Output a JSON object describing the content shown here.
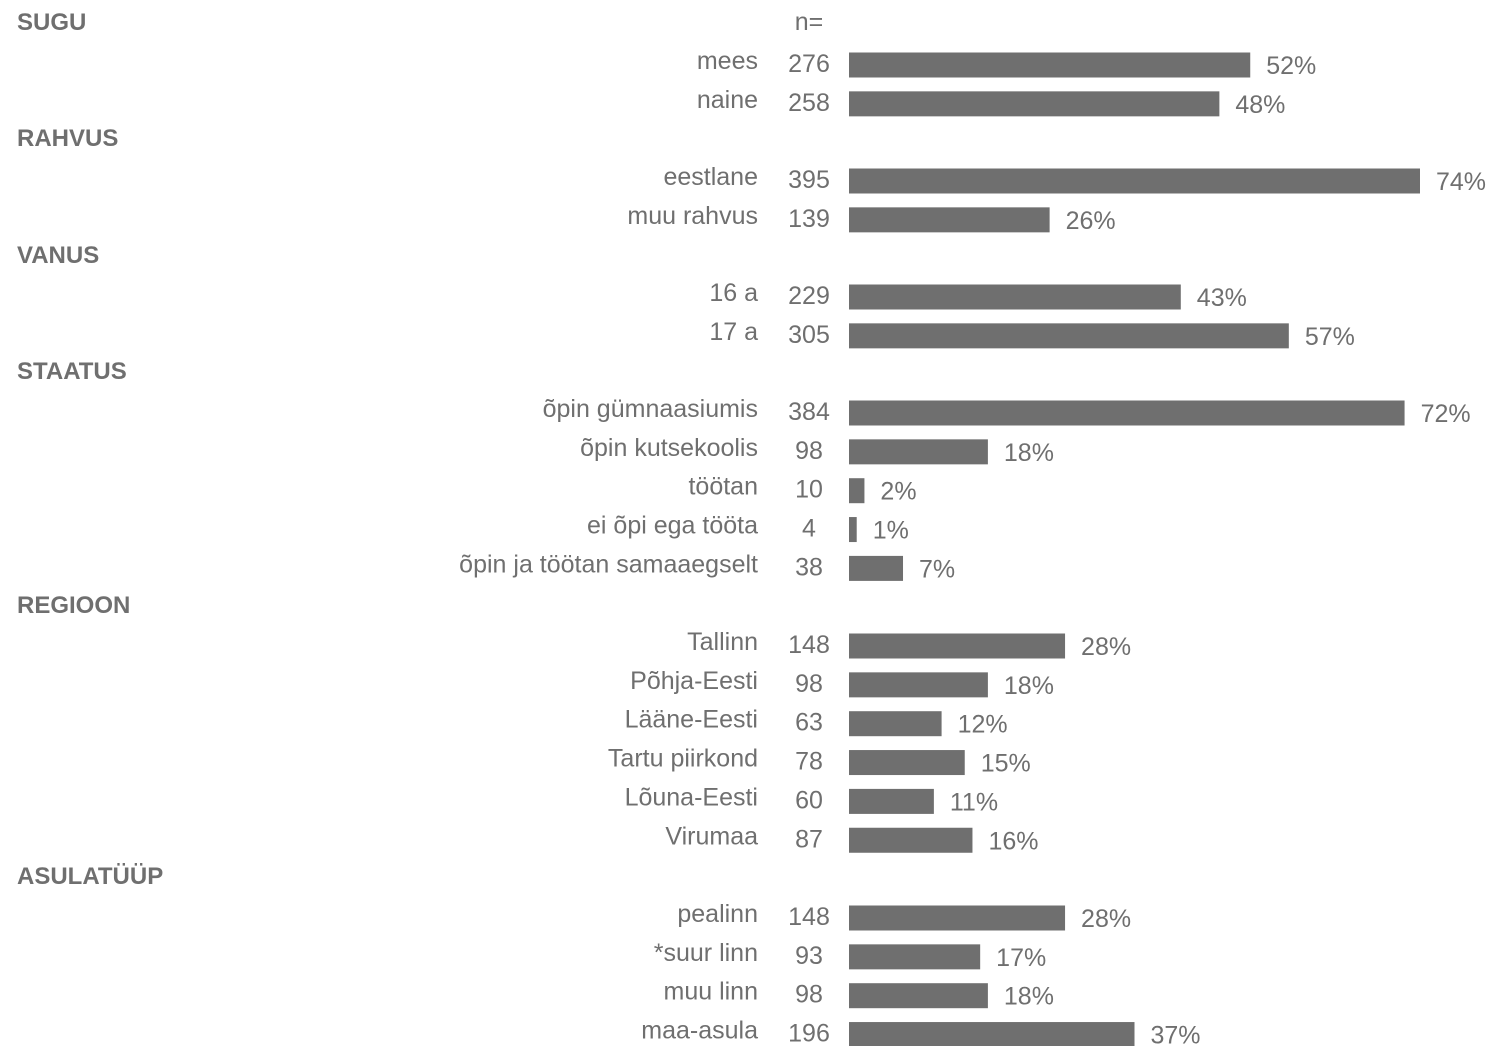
{
  "chart_data": {
    "type": "bar",
    "orientation": "horizontal",
    "n_header": "n=",
    "bar_color": "#6f6f6f",
    "text_color": "#6f6f6f",
    "xlim": [
      0,
      74
    ],
    "groups": [
      {
        "label": "SUGU",
        "items": [
          {
            "label": "mees",
            "n": "276",
            "value": 52,
            "pct": "52%"
          },
          {
            "label": "naine",
            "n": "258",
            "value": 48,
            "pct": "48%"
          }
        ]
      },
      {
        "label": "RAHVUS",
        "items": [
          {
            "label": "eestlane",
            "n": "395",
            "value": 74,
            "pct": "74%"
          },
          {
            "label": "muu rahvus",
            "n": "139",
            "value": 26,
            "pct": "26%"
          }
        ]
      },
      {
        "label": "VANUS",
        "items": [
          {
            "label": "16 a",
            "n": "229",
            "value": 43,
            "pct": "43%"
          },
          {
            "label": "17 a",
            "n": "305",
            "value": 57,
            "pct": "57%"
          }
        ]
      },
      {
        "label": "STAATUS",
        "items": [
          {
            "label": "õpin gümnaasiumis",
            "n": "384",
            "value": 72,
            "pct": "72%"
          },
          {
            "label": "õpin kutsekoolis",
            "n": "98",
            "value": 18,
            "pct": "18%"
          },
          {
            "label": "töötan",
            "n": "10",
            "value": 2,
            "pct": "2%"
          },
          {
            "label": "ei õpi ega tööta",
            "n": "4",
            "value": 1,
            "pct": "1%"
          },
          {
            "label": "õpin ja töötan samaaegselt",
            "n": "38",
            "value": 7,
            "pct": "7%"
          }
        ]
      },
      {
        "label": "REGIOON",
        "items": [
          {
            "label": "Tallinn",
            "n": "148",
            "value": 28,
            "pct": "28%"
          },
          {
            "label": "Põhja-Eesti",
            "n": "98",
            "value": 18,
            "pct": "18%"
          },
          {
            "label": "Lääne-Eesti",
            "n": "63",
            "value": 12,
            "pct": "12%"
          },
          {
            "label": "Tartu piirkond",
            "n": "78",
            "value": 15,
            "pct": "15%"
          },
          {
            "label": "Lõuna-Eesti",
            "n": "60",
            "value": 11,
            "pct": "11%"
          },
          {
            "label": "Virumaa",
            "n": "87",
            "value": 16,
            "pct": "16%"
          }
        ]
      },
      {
        "label": "ASULATÜÜP",
        "items": [
          {
            "label": "pealinn",
            "n": "148",
            "value": 28,
            "pct": "28%"
          },
          {
            "label": "*suur linn",
            "n": "93",
            "value": 17,
            "pct": "17%"
          },
          {
            "label": "muu linn",
            "n": "98",
            "value": 18,
            "pct": "18%"
          },
          {
            "label": "maa-asula",
            "n": "196",
            "value": 37,
            "pct": "37%"
          }
        ]
      }
    ]
  }
}
